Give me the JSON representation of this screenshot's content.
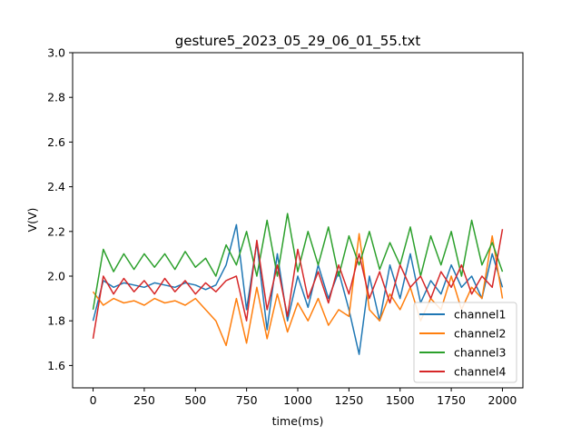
{
  "chart_data": {
    "type": "line",
    "title": "gesture5_2023_05_29_06_01_55.txt",
    "xlabel": "time(ms)",
    "ylabel": "V(V)",
    "xlim": [
      -100,
      2100
    ],
    "ylim": [
      1.5,
      3.0
    ],
    "xticks": [
      0,
      250,
      500,
      750,
      1000,
      1250,
      1500,
      1750,
      2000
    ],
    "yticks": [
      1.6,
      1.8,
      2.0,
      2.2,
      2.4,
      2.6,
      2.8,
      3.0
    ],
    "ytick_labels": [
      "1.6",
      "1.8",
      "2.0",
      "2.2",
      "2.4",
      "2.6",
      "2.8",
      "3.0"
    ],
    "grid": false,
    "legend_position": "lower-right",
    "series": [
      {
        "name": "channel1",
        "color": "#1f77b4",
        "x": [
          0,
          50,
          100,
          150,
          200,
          250,
          300,
          350,
          400,
          450,
          500,
          550,
          600,
          650,
          700,
          750,
          800,
          850,
          900,
          950,
          1000,
          1050,
          1100,
          1150,
          1200,
          1250,
          1300,
          1350,
          1400,
          1450,
          1500,
          1550,
          1600,
          1650,
          1700,
          1750,
          1800,
          1850,
          1900,
          1950,
          2000
        ],
        "values": [
          1.8,
          1.98,
          1.95,
          1.97,
          1.96,
          1.95,
          1.97,
          1.96,
          1.95,
          1.97,
          1.96,
          1.94,
          1.96,
          2.05,
          2.23,
          1.85,
          2.15,
          1.76,
          2.1,
          1.8,
          2.0,
          1.86,
          2.05,
          1.9,
          2.02,
          1.85,
          1.65,
          2.0,
          1.8,
          2.05,
          1.9,
          2.1,
          1.88,
          1.98,
          1.92,
          2.05,
          1.95,
          2.0,
          1.9,
          2.1,
          1.95
        ]
      },
      {
        "name": "channel2",
        "color": "#ff7f0e",
        "x": [
          0,
          50,
          100,
          150,
          200,
          250,
          300,
          350,
          400,
          450,
          500,
          550,
          600,
          650,
          700,
          750,
          800,
          850,
          900,
          950,
          1000,
          1050,
          1100,
          1150,
          1200,
          1250,
          1300,
          1350,
          1400,
          1450,
          1500,
          1550,
          1600,
          1650,
          1700,
          1750,
          1800,
          1850,
          1900,
          1950,
          2000
        ],
        "values": [
          1.93,
          1.87,
          1.9,
          1.88,
          1.89,
          1.87,
          1.9,
          1.88,
          1.89,
          1.87,
          1.9,
          1.85,
          1.8,
          1.69,
          1.9,
          1.7,
          1.95,
          1.72,
          1.92,
          1.75,
          1.88,
          1.8,
          1.9,
          1.78,
          1.85,
          1.82,
          2.19,
          1.85,
          1.8,
          1.92,
          1.85,
          1.95,
          1.8,
          1.9,
          1.85,
          2.0,
          1.85,
          1.95,
          1.9,
          2.18,
          1.9
        ]
      },
      {
        "name": "channel3",
        "color": "#2ca02c",
        "x": [
          0,
          50,
          100,
          150,
          200,
          250,
          300,
          350,
          400,
          450,
          500,
          550,
          600,
          650,
          700,
          750,
          800,
          850,
          900,
          950,
          1000,
          1050,
          1100,
          1150,
          1200,
          1250,
          1300,
          1350,
          1400,
          1450,
          1500,
          1550,
          1600,
          1650,
          1700,
          1750,
          1800,
          1850,
          1900,
          1950,
          2000
        ],
        "values": [
          1.85,
          2.12,
          2.02,
          2.1,
          2.03,
          2.1,
          2.04,
          2.1,
          2.03,
          2.11,
          2.04,
          2.08,
          2.0,
          2.14,
          2.05,
          2.2,
          2.0,
          2.25,
          2.0,
          2.28,
          2.02,
          2.2,
          2.05,
          2.22,
          2.0,
          2.18,
          2.05,
          2.2,
          2.03,
          2.15,
          2.05,
          2.22,
          2.0,
          2.18,
          2.05,
          2.2,
          2.0,
          2.25,
          2.05,
          2.15,
          2.02
        ]
      },
      {
        "name": "channel4",
        "color": "#d62728",
        "x": [
          0,
          50,
          100,
          150,
          200,
          250,
          300,
          350,
          400,
          450,
          500,
          550,
          600,
          650,
          700,
          750,
          800,
          850,
          900,
          950,
          1000,
          1050,
          1100,
          1150,
          1200,
          1250,
          1300,
          1350,
          1400,
          1450,
          1500,
          1550,
          1600,
          1650,
          1700,
          1750,
          1800,
          1850,
          1900,
          1950,
          2000
        ],
        "values": [
          1.72,
          2.0,
          1.92,
          1.99,
          1.93,
          1.98,
          1.92,
          1.99,
          1.93,
          1.98,
          1.92,
          1.97,
          1.93,
          1.98,
          2.0,
          1.8,
          2.16,
          1.85,
          2.05,
          1.82,
          2.12,
          1.9,
          2.02,
          1.88,
          2.05,
          1.92,
          2.1,
          1.9,
          2.02,
          1.88,
          2.05,
          1.95,
          2.0,
          1.9,
          2.02,
          1.95,
          2.05,
          1.92,
          2.0,
          1.95,
          2.21
        ]
      }
    ]
  }
}
